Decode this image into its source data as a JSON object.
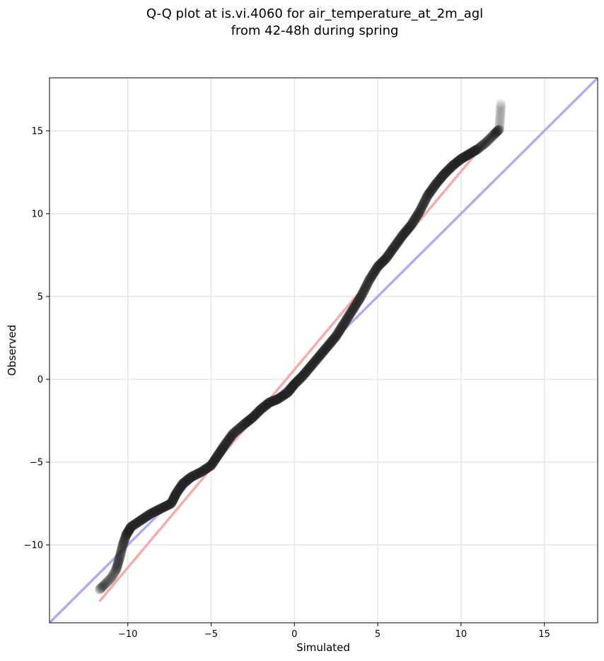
{
  "chart_data": {
    "type": "scatter",
    "title_line1": "Q-Q plot at is.vi.4060 for air_temperature_at_2m_agl",
    "title_line2": "from 42-48h during spring",
    "xlabel": "Simulated",
    "ylabel": "Observed",
    "xlim": [
      -14.7,
      18.2
    ],
    "ylim": [
      -14.7,
      18.2
    ],
    "xticks": [
      -10,
      -5,
      0,
      5,
      10,
      15
    ],
    "yticks": [
      -10,
      -5,
      0,
      5,
      10,
      15
    ],
    "xtick_labels": [
      "−10",
      "−5",
      "0",
      "5",
      "10",
      "15"
    ],
    "ytick_labels": [
      "−10",
      "−5",
      "0",
      "5",
      "10",
      "15"
    ],
    "grid": true,
    "reference_line": {
      "kind": "identity",
      "color": "#aaaaee"
    },
    "fit_line": {
      "x": [
        -11.7,
        12.3
      ],
      "y": [
        -13.4,
        15.3
      ],
      "color": "#f4a6a6"
    },
    "quantile_curve": {
      "color": "#222222",
      "points": [
        [
          -11.7,
          -12.7
        ],
        [
          -11.4,
          -12.4
        ],
        [
          -11.0,
          -12.0
        ],
        [
          -10.7,
          -11.5
        ],
        [
          -10.5,
          -10.8
        ],
        [
          -10.3,
          -10.0
        ],
        [
          -10.1,
          -9.4
        ],
        [
          -9.8,
          -8.9
        ],
        [
          -9.2,
          -8.5
        ],
        [
          -8.6,
          -8.1
        ],
        [
          -8.0,
          -7.8
        ],
        [
          -7.4,
          -7.5
        ],
        [
          -7.1,
          -6.9
        ],
        [
          -6.7,
          -6.3
        ],
        [
          -6.2,
          -5.9
        ],
        [
          -5.6,
          -5.6
        ],
        [
          -5.0,
          -5.2
        ],
        [
          -4.6,
          -4.6
        ],
        [
          -4.2,
          -4.0
        ],
        [
          -3.7,
          -3.3
        ],
        [
          -3.0,
          -2.7
        ],
        [
          -2.5,
          -2.3
        ],
        [
          -2.0,
          -1.8
        ],
        [
          -1.5,
          -1.4
        ],
        [
          -1.0,
          -1.2
        ],
        [
          -0.4,
          -0.8
        ],
        [
          0.0,
          -0.3
        ],
        [
          0.5,
          0.2
        ],
        [
          1.0,
          0.8
        ],
        [
          1.5,
          1.4
        ],
        [
          2.0,
          2.0
        ],
        [
          2.5,
          2.6
        ],
        [
          3.0,
          3.4
        ],
        [
          3.5,
          4.2
        ],
        [
          4.0,
          5.0
        ],
        [
          4.5,
          6.0
        ],
        [
          5.0,
          6.8
        ],
        [
          5.5,
          7.3
        ],
        [
          6.0,
          8.0
        ],
        [
          6.5,
          8.7
        ],
        [
          7.0,
          9.3
        ],
        [
          7.5,
          10.1
        ],
        [
          8.0,
          11.1
        ],
        [
          8.5,
          11.8
        ],
        [
          9.0,
          12.4
        ],
        [
          9.5,
          12.9
        ],
        [
          10.0,
          13.3
        ],
        [
          10.5,
          13.6
        ],
        [
          11.0,
          13.9
        ],
        [
          11.5,
          14.3
        ],
        [
          12.0,
          14.8
        ],
        [
          12.3,
          15.1
        ],
        [
          12.4,
          16.6
        ]
      ]
    }
  }
}
